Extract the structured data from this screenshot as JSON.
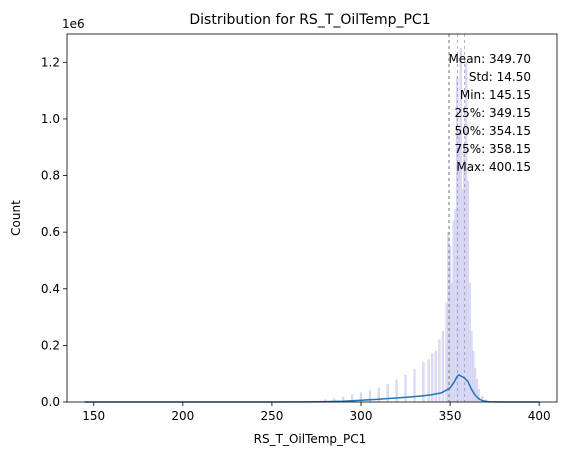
{
  "chart_data": {
    "type": "bar",
    "title": "Distribution for RS_T_OilTemp_PC1",
    "xlabel": "RS_T_OilTemp_PC1",
    "ylabel": "Count",
    "y_multiplier_label": "1e6",
    "xlim": [
      135,
      410
    ],
    "ylim": [
      0,
      1300000
    ],
    "x_ticks": [
      150,
      200,
      250,
      300,
      350,
      400
    ],
    "y_ticks": [
      0,
      200000,
      400000,
      600000,
      800000,
      1000000,
      1200000
    ],
    "y_tick_labels": [
      "0.0",
      "0.2",
      "0.4",
      "0.6",
      "0.8",
      "1.0",
      "1.2"
    ],
    "grid": false,
    "colors": {
      "histogram_fill": "#dcdcf7",
      "histogram_edge": "#c9c9ef",
      "kde_line": "#1f77b4",
      "stat_line": "#888888"
    },
    "histogram": {
      "bin_centers": [
        280,
        285,
        290,
        295,
        300,
        305,
        310,
        315,
        320,
        325,
        330,
        335,
        338,
        340,
        342,
        344,
        346,
        348,
        349,
        350,
        351,
        352,
        353,
        354,
        355,
        356,
        357,
        358,
        359,
        360,
        361,
        362,
        363,
        364,
        365,
        366,
        368,
        370,
        372
      ],
      "counts": [
        8000,
        12000,
        18000,
        25000,
        32000,
        40000,
        50000,
        62000,
        78000,
        95000,
        115000,
        140000,
        150000,
        170000,
        180000,
        220000,
        250000,
        350000,
        600000,
        550000,
        420000,
        640000,
        680000,
        1150000,
        950000,
        1250000,
        750000,
        900000,
        1200000,
        780000,
        420000,
        250000,
        180000,
        120000,
        80000,
        45000,
        20000,
        8000,
        3000
      ]
    },
    "kde": {
      "x": [
        145,
        200,
        250,
        270,
        280,
        290,
        300,
        310,
        320,
        330,
        335,
        340,
        345,
        348,
        350,
        352,
        354,
        355,
        356,
        358,
        360,
        362,
        364,
        366,
        368,
        370,
        372,
        375,
        380,
        400
      ],
      "y": [
        0,
        0,
        0,
        500,
        1500,
        3000,
        6000,
        10000,
        14000,
        19000,
        22000,
        26000,
        32000,
        42000,
        50000,
        68000,
        90000,
        96000,
        92000,
        85000,
        72000,
        45000,
        25000,
        12000,
        5000,
        2000,
        800,
        200,
        0,
        0
      ]
    },
    "stat_lines": [
      349.7,
      349.15,
      354.15,
      358.15
    ],
    "stats": {
      "mean": "Mean: 349.70",
      "std": "Std: 14.50",
      "min": "Min: 145.15",
      "p25": "25%: 349.15",
      "p50": "50%: 354.15",
      "p75": "75%: 358.15",
      "max": "Max: 400.15"
    }
  }
}
